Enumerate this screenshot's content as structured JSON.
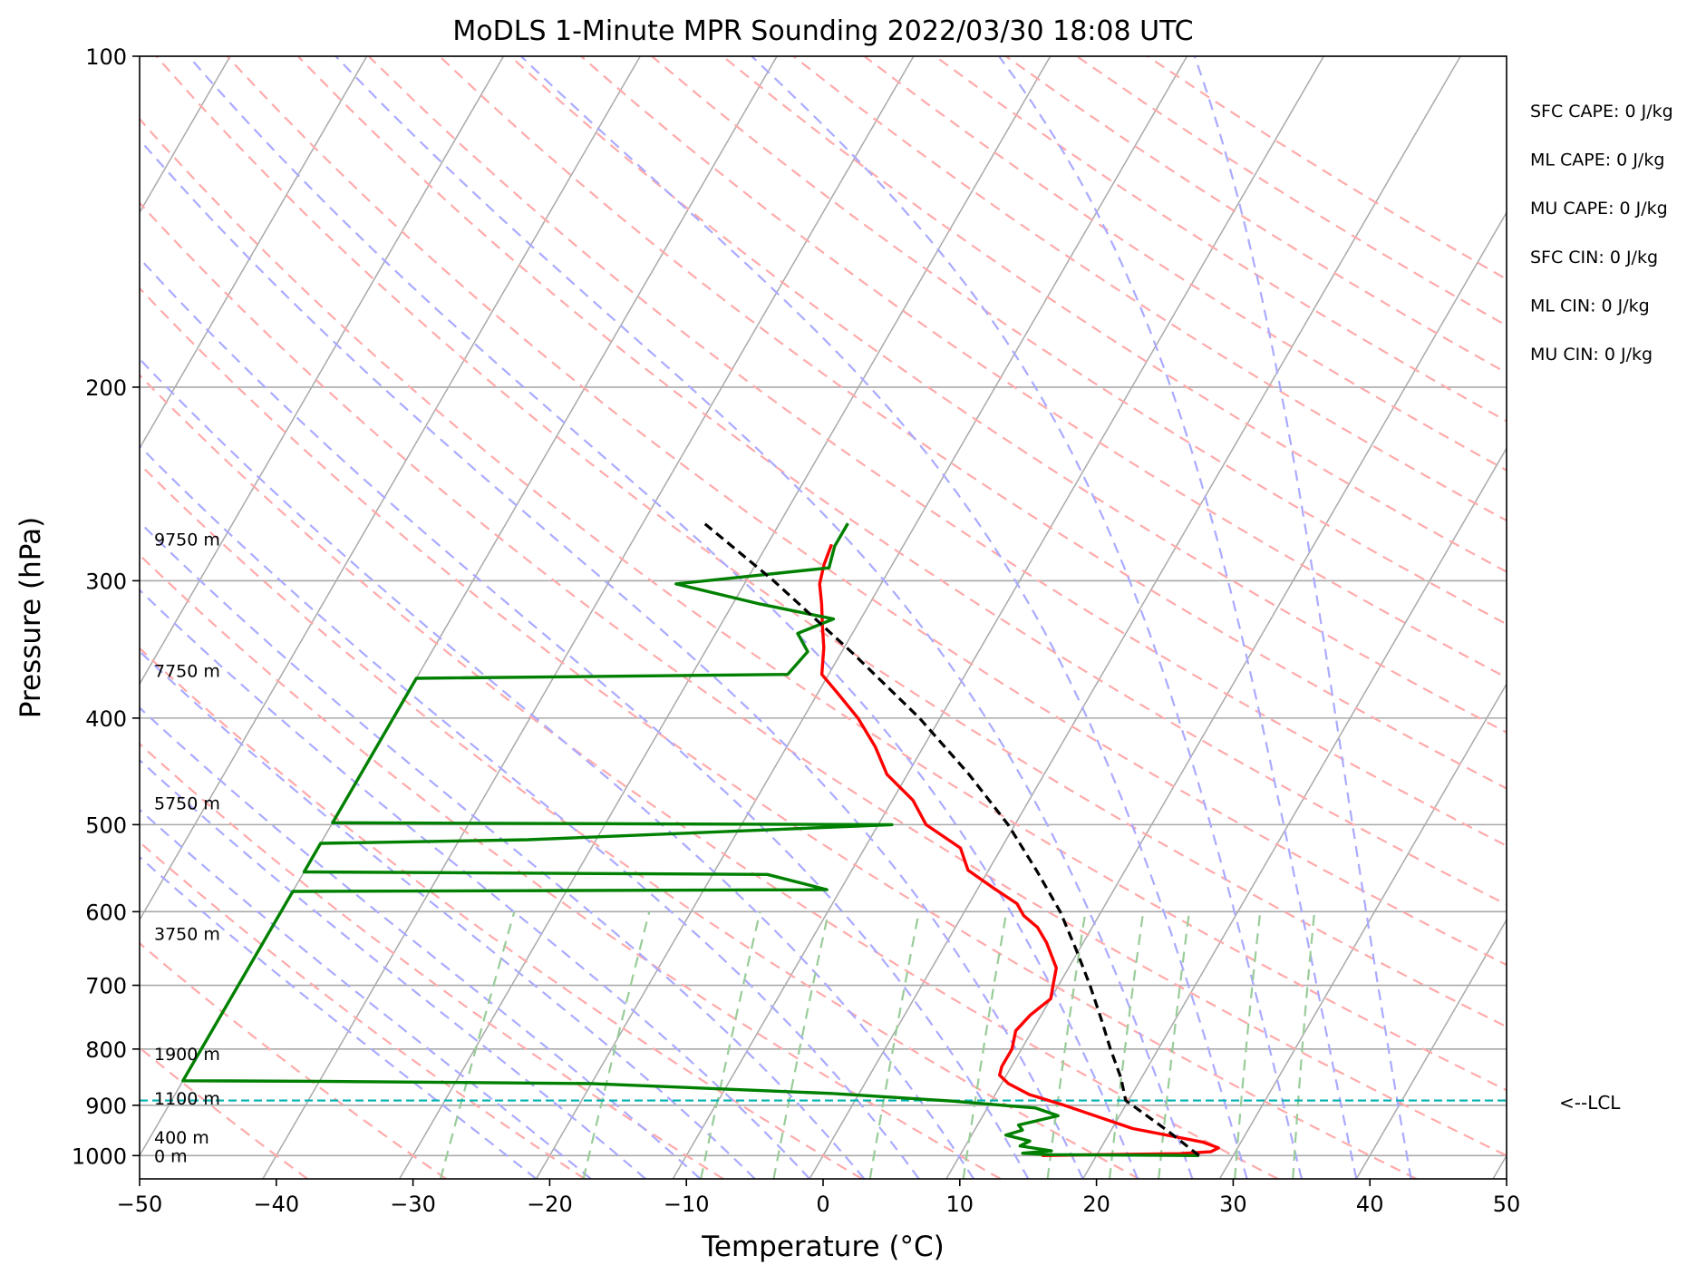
{
  "chart_data": {
    "type": "line",
    "title": "MoDLS 1-Minute MPR Sounding 2022/03/30 18:08 UTC",
    "xlabel": "Temperature (°C)",
    "ylabel": "Pressure (hPa)",
    "xlim": [
      -50,
      50
    ],
    "ylim": [
      1050,
      100
    ],
    "log_y": true,
    "skew_t": true,
    "grid": true,
    "xticks": [
      "−50",
      "−40",
      "−30",
      "−20",
      "−10",
      "0",
      "10",
      "20",
      "30",
      "40",
      "50"
    ],
    "yticks": [
      {
        "p": 100,
        "label": "100"
      },
      {
        "p": 200,
        "label": "200"
      },
      {
        "p": 300,
        "label": "300"
      },
      {
        "p": 400,
        "label": "400"
      },
      {
        "p": 500,
        "label": "500"
      },
      {
        "p": 600,
        "label": "600"
      },
      {
        "p": 700,
        "label": "700"
      },
      {
        "p": 800,
        "label": "800"
      },
      {
        "p": 900,
        "label": "900"
      },
      {
        "p": 1000,
        "label": "1000"
      }
    ],
    "series": [
      {
        "role": "temperature",
        "color": "#ff0000",
        "points": [
          [
            1000,
            16
          ],
          [
            998,
            20
          ],
          [
            996,
            26
          ],
          [
            992,
            28.2
          ],
          [
            984,
            28.6
          ],
          [
            972,
            27.2
          ],
          [
            945,
            21.5
          ],
          [
            900,
            15.5
          ],
          [
            880,
            12.5
          ],
          [
            860,
            10.5
          ],
          [
            845,
            9.5
          ],
          [
            830,
            9.3
          ],
          [
            800,
            9.3
          ],
          [
            770,
            8.8
          ],
          [
            745,
            9.2
          ],
          [
            720,
            10.0
          ],
          [
            700,
            9.6
          ],
          [
            675,
            9.1
          ],
          [
            640,
            7.3
          ],
          [
            620,
            6.0
          ],
          [
            605,
            4.5
          ],
          [
            590,
            3.5
          ],
          [
            570,
            1.0
          ],
          [
            550,
            -1.5
          ],
          [
            525,
            -3.0
          ],
          [
            500,
            -6.5
          ],
          [
            475,
            -8.5
          ],
          [
            450,
            -11.5
          ],
          [
            425,
            -13.5
          ],
          [
            400,
            -16.0
          ],
          [
            380,
            -18.5
          ],
          [
            365,
            -20.5
          ],
          [
            345,
            -21.5
          ],
          [
            330,
            -22.5
          ],
          [
            315,
            -23.5
          ],
          [
            302,
            -24.5
          ],
          [
            290,
            -25.0
          ],
          [
            278,
            -25.3
          ]
        ]
      },
      {
        "role": "dewpoint",
        "color": "#008000",
        "points": [
          [
            1000,
            27.5
          ],
          [
            998,
            16.5
          ],
          [
            995,
            14.5
          ],
          [
            990,
            16.5
          ],
          [
            980,
            14.0
          ],
          [
            970,
            14.5
          ],
          [
            958,
            12.5
          ],
          [
            948,
            13.5
          ],
          [
            938,
            13.0
          ],
          [
            920,
            15.5
          ],
          [
            905,
            13.5
          ],
          [
            892,
            7.0
          ],
          [
            878,
            -2.0
          ],
          [
            860,
            -20.0
          ],
          [
            856,
            -40.0
          ],
          [
            855,
            -50.0
          ],
          [
            575,
            -50.0
          ],
          [
            573,
            -11.0
          ],
          [
            555,
            -16.0
          ],
          [
            552,
            -50.0
          ],
          [
            520,
            -50.0
          ],
          [
            516,
            -35.0
          ],
          [
            500,
            -9.0
          ],
          [
            498,
            -50.0
          ],
          [
            368,
            -50.0
          ],
          [
            365,
            -23.0
          ],
          [
            348,
            -22.5
          ],
          [
            335,
            -24.0
          ],
          [
            325,
            -22.0
          ],
          [
            315,
            -28.0
          ],
          [
            302,
            -35.0
          ],
          [
            292,
            -24.5
          ],
          [
            279,
            -25.0
          ],
          [
            266,
            -25.0
          ]
        ]
      },
      {
        "role": "parcel",
        "color": "#000000",
        "points": [
          [
            1000,
            27.5
          ],
          [
            950,
            24.2
          ],
          [
            891,
            19.8
          ],
          [
            850,
            18.5
          ],
          [
            800,
            16.5
          ],
          [
            750,
            14.5
          ],
          [
            700,
            12.3
          ],
          [
            650,
            9.8
          ],
          [
            600,
            7.0
          ],
          [
            550,
            3.5
          ],
          [
            500,
            -0.5
          ],
          [
            450,
            -5.5
          ],
          [
            400,
            -11.5
          ],
          [
            350,
            -19.0
          ],
          [
            300,
            -28.0
          ],
          [
            266,
            -35.5
          ]
        ]
      }
    ],
    "lcl": {
      "p": 891,
      "label": "<--LCL",
      "color": "#00b0b0"
    },
    "height_labels": [
      {
        "p": 1000,
        "label": "0 m"
      },
      {
        "p": 962,
        "label": "400 m"
      },
      {
        "p": 887,
        "label": "1100 m"
      },
      {
        "p": 808,
        "label": "1900 m"
      },
      {
        "p": 628,
        "label": "3750 m"
      },
      {
        "p": 478,
        "label": "5750 m"
      },
      {
        "p": 362,
        "label": "7750 m"
      },
      {
        "p": 275,
        "label": "9750 m"
      }
    ],
    "annotations": [
      "SFC CAPE: 0 J/kg",
      "ML CAPE: 0 J/kg",
      "MU CAPE: 0 J/kg",
      "SFC CIN: 0 J/kg",
      "ML CIN: 0 J/kg",
      "MU CIN: 0 J/kg"
    ],
    "colors": {
      "isotherm": "#a9a9a9",
      "dry_adiabat": "#ffaaaa",
      "moist_adiabat": "#aaaaff",
      "mixing_ratio": "#99cc99"
    }
  }
}
